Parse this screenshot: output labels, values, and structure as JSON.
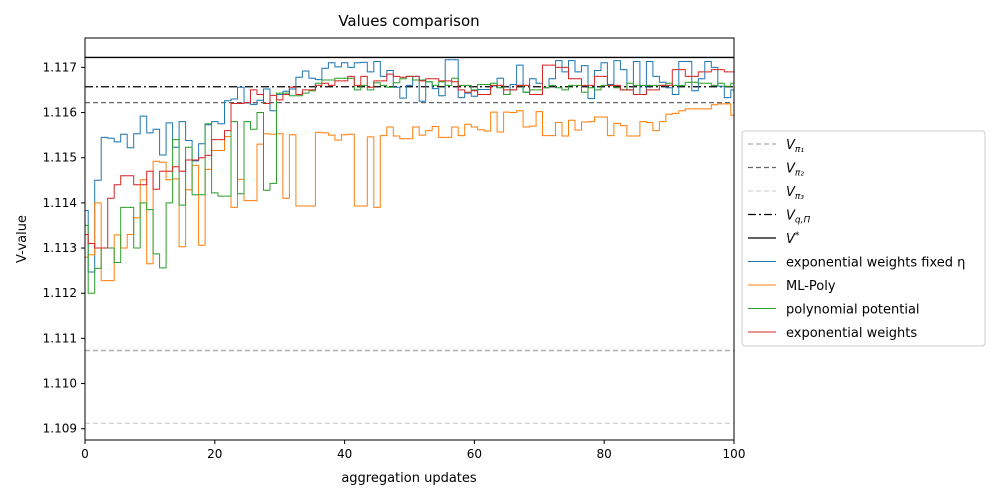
{
  "chart_data": {
    "type": "line",
    "title": "Values comparison",
    "xlabel": "aggregation updates",
    "ylabel": "V-value",
    "xlim": [
      0,
      100
    ],
    "ylim": [
      1.10875,
      1.11765
    ],
    "xticks": [
      0,
      20,
      40,
      60,
      80,
      100
    ],
    "yticks": [
      1.109,
      1.11,
      1.111,
      1.112,
      1.113,
      1.114,
      1.115,
      1.116,
      1.117
    ],
    "ytick_labels": [
      "1.109",
      "1.110",
      "1.111",
      "1.112",
      "1.113",
      "1.114",
      "1.115",
      "1.116",
      "1.117"
    ],
    "grid": false,
    "legend_position": "center right, outside plot",
    "reference_lines": [
      {
        "name": "V_{π₁}",
        "label_main": "V",
        "label_sub": "π₁",
        "label_sup": "",
        "value": 1.11073,
        "color": "#aaaaaa",
        "style": "dashed"
      },
      {
        "name": "V_{π₂}",
        "label_main": "V",
        "label_sub": "π₂",
        "label_sup": "",
        "value": 1.11622,
        "color": "#666666",
        "style": "dashed"
      },
      {
        "name": "V_{π₃}",
        "label_main": "V",
        "label_sub": "π₃",
        "label_sup": "",
        "value": 1.10912,
        "color": "#d3d3d3",
        "style": "dashed"
      },
      {
        "name": "V_{q,Π}",
        "label_main": "V",
        "label_sub": "q,Π",
        "label_sup": "",
        "value": 1.11657,
        "color": "#000000",
        "style": "dashdot"
      },
      {
        "name": "V*",
        "label_main": "V",
        "label_sub": "",
        "label_sup": "*",
        "value": 1.11722,
        "color": "#000000",
        "style": "solid"
      }
    ],
    "series": [
      {
        "name": "exponential weights fixed η",
        "color": "#1f77b4",
        "values": [
          1.11383,
          1.11247,
          1.1145,
          1.11545,
          1.11543,
          1.11535,
          1.11552,
          1.11522,
          1.11553,
          1.11592,
          1.11555,
          1.11563,
          1.11506,
          1.11577,
          1.11523,
          1.1158,
          1.11538,
          1.11493,
          1.11531,
          1.11573,
          1.1158,
          1.11575,
          1.11626,
          1.1163,
          1.11656,
          1.11621,
          1.11618,
          1.11627,
          1.11652,
          1.11604,
          1.1164,
          1.11647,
          1.11652,
          1.11678,
          1.11692,
          1.11676,
          1.11673,
          1.11698,
          1.1171,
          1.11701,
          1.1171,
          1.117,
          1.1171,
          1.11711,
          1.1169,
          1.11713,
          1.1168,
          1.11693,
          1.11656,
          1.11632,
          1.1166,
          1.1168,
          1.11625,
          1.11668,
          1.11653,
          1.11637,
          1.11717,
          1.11717,
          1.11633,
          1.11643,
          1.11636,
          1.11651,
          1.11651,
          1.11659,
          1.11676,
          1.1164,
          1.11662,
          1.11705,
          1.11645,
          1.11675,
          1.11665,
          1.11655,
          1.11675,
          1.11715,
          1.1169,
          1.11715,
          1.1169,
          1.11704,
          1.11631,
          1.11693,
          1.1171,
          1.11662,
          1.11715,
          1.11695,
          1.1165,
          1.11713,
          1.1164,
          1.11713,
          1.1168,
          1.11667,
          1.11655,
          1.1164,
          1.11713,
          1.11713,
          1.11648,
          1.11675,
          1.11713,
          1.117,
          1.11658,
          1.11633,
          1.1165
        ]
      },
      {
        "name": "ML-Poly",
        "color": "#ff7f0e",
        "values": [
          1.1128,
          1.11285,
          1.114,
          1.11228,
          1.11228,
          1.11329,
          1.113,
          1.1133,
          1.11367,
          1.11451,
          1.11265,
          1.11492,
          1.1149,
          1.11451,
          1.11453,
          1.11303,
          1.11429,
          1.11483,
          1.11306,
          1.11474,
          1.11516,
          1.11516,
          1.11547,
          1.1139,
          1.11452,
          1.11405,
          1.11405,
          1.1153,
          1.11553,
          1.11552,
          1.11553,
          1.1141,
          1.11551,
          1.11393,
          1.11393,
          1.11393,
          1.11556,
          1.11555,
          1.1155,
          1.11539,
          1.11551,
          1.11552,
          1.11393,
          1.11393,
          1.11546,
          1.1139,
          1.11549,
          1.11568,
          1.11548,
          1.11542,
          1.11542,
          1.11568,
          1.1155,
          1.1156,
          1.11569,
          1.11545,
          1.11545,
          1.11568,
          1.11549,
          1.11574,
          1.11568,
          1.11562,
          1.11559,
          1.11601,
          1.11557,
          1.11601,
          1.116,
          1.11604,
          1.11568,
          1.1157,
          1.11602,
          1.11549,
          1.11549,
          1.11578,
          1.11548,
          1.11583,
          1.11561,
          1.11579,
          1.1158,
          1.1159,
          1.1159,
          1.11549,
          1.11576,
          1.11571,
          1.11548,
          1.11548,
          1.1158,
          1.11578,
          1.1156,
          1.1158,
          1.11596,
          1.11598,
          1.11604,
          1.11608,
          1.11608,
          1.11608,
          1.11608,
          1.11617,
          1.11619,
          1.11619,
          1.11594
        ]
      },
      {
        "name": "polynomial potential",
        "color": "#2ca02c",
        "values": [
          1.1135,
          1.112,
          1.11255,
          1.113,
          1.113,
          1.11268,
          1.1139,
          1.1139,
          1.113,
          1.114,
          1.11385,
          1.11287,
          1.11256,
          1.114,
          1.1154,
          1.11395,
          1.11523,
          1.11418,
          1.11418,
          1.11575,
          1.11422,
          1.11415,
          1.11415,
          1.1158,
          1.1142,
          1.1158,
          1.11563,
          1.116,
          1.11428,
          1.11443,
          1.11643,
          1.11643,
          1.11637,
          1.11637,
          1.11643,
          1.11648,
          1.11665,
          1.11672,
          1.11672,
          1.11676,
          1.11676,
          1.11676,
          1.1165,
          1.1166,
          1.1165,
          1.11666,
          1.1166,
          1.11656,
          1.11666,
          1.11675,
          1.1168,
          1.11672,
          1.11672,
          1.11668,
          1.1166,
          1.11668,
          1.1166,
          1.11676,
          1.1166,
          1.1166,
          1.1165,
          1.11662,
          1.11662,
          1.11665,
          1.11655,
          1.1164,
          1.1165,
          1.1166,
          1.11645,
          1.1165,
          1.1165,
          1.11655,
          1.1166,
          1.11655,
          1.1165,
          1.1166,
          1.1166,
          1.11645,
          1.11655,
          1.1165,
          1.1166,
          1.1166,
          1.11655,
          1.1165,
          1.11665,
          1.1166,
          1.1166,
          1.1166,
          1.1166,
          1.1166,
          1.11665,
          1.1166,
          1.1166,
          1.11667,
          1.11667,
          1.11665,
          1.11665,
          1.1166,
          1.11665,
          1.11658,
          1.11665
        ]
      },
      {
        "name": "exponential weights",
        "color": "#d62728",
        "values": [
          1.1133,
          1.1131,
          1.113,
          1.113,
          1.1141,
          1.1144,
          1.1146,
          1.1146,
          1.1144,
          1.1144,
          1.1147,
          1.1143,
          1.1147,
          1.1147,
          1.1148,
          1.1147,
          1.11495,
          1.11495,
          1.115,
          1.11505,
          1.1154,
          1.1154,
          1.1156,
          1.1162,
          1.1162,
          1.11622,
          1.1165,
          1.1164,
          1.1162,
          1.11638,
          1.11628,
          1.1164,
          1.11656,
          1.1164,
          1.1165,
          1.1165,
          1.1166,
          1.11665,
          1.1166,
          1.1167,
          1.1167,
          1.1168,
          1.1166,
          1.1168,
          1.11656,
          1.1167,
          1.1167,
          1.11685,
          1.1168,
          1.11678,
          1.1168,
          1.1168,
          1.1167,
          1.11675,
          1.11675,
          1.1167,
          1.1167,
          1.11668,
          1.1165,
          1.11645,
          1.11648,
          1.1164,
          1.1164,
          1.1166,
          1.1166,
          1.1165,
          1.1165,
          1.1166,
          1.1166,
          1.1164,
          1.1164,
          1.11705,
          1.11705,
          1.117,
          1.117,
          1.11675,
          1.11675,
          1.1166,
          1.1166,
          1.1168,
          1.1168,
          1.1166,
          1.1166,
          1.1165,
          1.1165,
          1.1164,
          1.1164,
          1.1165,
          1.1165,
          1.1166,
          1.1166,
          1.11695,
          1.11695,
          1.1168,
          1.1168,
          1.1169,
          1.1169,
          1.11695,
          1.11695,
          1.1169,
          1.1169
        ]
      }
    ]
  }
}
